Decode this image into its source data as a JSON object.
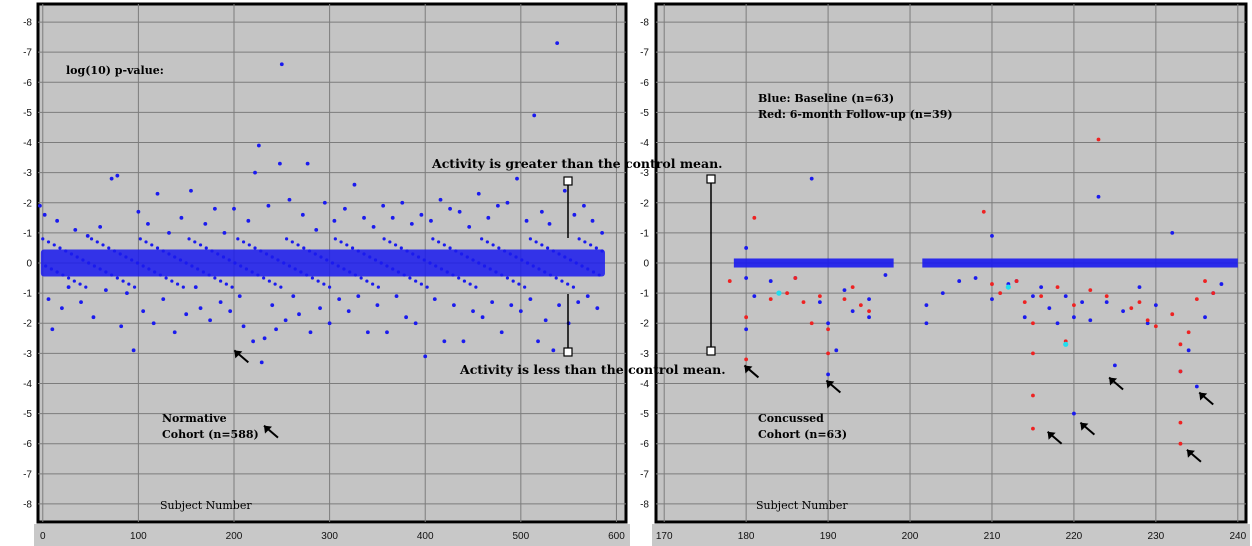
{
  "chart_data": [
    {
      "type": "scatter",
      "xlim": [
        -5,
        610
      ],
      "ylim": [
        -8.6,
        8.6
      ],
      "y_axis_inverted": true,
      "xticks": [
        0,
        100,
        200,
        300,
        400,
        500,
        600
      ],
      "yticks": [
        -8,
        -7,
        -6,
        -5,
        -4,
        -3,
        -2,
        -1,
        0,
        1,
        2,
        3,
        4,
        5,
        6,
        7,
        8
      ],
      "ytick_labels": [
        "-8",
        "-7",
        "-6",
        "-5",
        "-4",
        "-3",
        "-2",
        "-1",
        "0",
        "-1",
        "-2",
        "-3",
        "-4",
        "-5",
        "-6",
        "-7",
        "-8"
      ],
      "grid": true,
      "title": "log(10) p-value:",
      "xlabel": "Subject Number",
      "cohort_label": [
        "Normative",
        "Cohort (n=588)"
      ],
      "series": [
        {
          "color": "#1a1aee",
          "points": [
            [
              -3,
              -1.9
            ],
            [
              2,
              -1.6
            ],
            [
              6,
              1.2
            ],
            [
              10,
              2.2
            ],
            [
              15,
              -1.4
            ],
            [
              20,
              1.5
            ],
            [
              27,
              0.8
            ],
            [
              34,
              -1.1
            ],
            [
              40,
              1.3
            ],
            [
              47,
              -0.9
            ],
            [
              53,
              1.8
            ],
            [
              60,
              -1.2
            ],
            [
              66,
              0.9
            ],
            [
              72,
              -2.8
            ],
            [
              78,
              -2.9
            ],
            [
              82,
              2.1
            ],
            [
              88,
              1.0
            ],
            [
              95,
              2.9
            ],
            [
              100,
              -1.7
            ],
            [
              105,
              1.6
            ],
            [
              110,
              -1.3
            ],
            [
              116,
              2.0
            ],
            [
              120,
              -2.3
            ],
            [
              126,
              1.2
            ],
            [
              132,
              -1.0
            ],
            [
              138,
              2.3
            ],
            [
              145,
              -1.5
            ],
            [
              150,
              1.7
            ],
            [
              155,
              -2.4
            ],
            [
              160,
              0.8
            ],
            [
              165,
              1.5
            ],
            [
              170,
              -1.3
            ],
            [
              175,
              1.9
            ],
            [
              180,
              -1.8
            ],
            [
              186,
              1.3
            ],
            [
              190,
              -1.0
            ],
            [
              196,
              1.6
            ],
            [
              200,
              -1.8
            ],
            [
              206,
              1.1
            ],
            [
              210,
              2.1
            ],
            [
              215,
              -1.4
            ],
            [
              220,
              2.6
            ],
            [
              222,
              -3.0
            ],
            [
              226,
              -3.9
            ],
            [
              229,
              3.3
            ],
            [
              232,
              2.5
            ],
            [
              236,
              -1.9
            ],
            [
              240,
              1.4
            ],
            [
              244,
              2.2
            ],
            [
              248,
              -3.3
            ],
            [
              250,
              -6.6
            ],
            [
              254,
              1.9
            ],
            [
              258,
              -2.1
            ],
            [
              262,
              1.1
            ],
            [
              268,
              1.7
            ],
            [
              272,
              -1.6
            ],
            [
              277,
              -3.3
            ],
            [
              280,
              2.3
            ],
            [
              286,
              -1.1
            ],
            [
              290,
              1.5
            ],
            [
              295,
              -2.0
            ],
            [
              300,
              2.0
            ],
            [
              305,
              -1.4
            ],
            [
              310,
              1.2
            ],
            [
              316,
              -1.8
            ],
            [
              320,
              1.6
            ],
            [
              326,
              -2.6
            ],
            [
              330,
              1.1
            ],
            [
              336,
              -1.5
            ],
            [
              340,
              2.3
            ],
            [
              346,
              -1.2
            ],
            [
              350,
              1.4
            ],
            [
              356,
              -1.9
            ],
            [
              360,
              2.3
            ],
            [
              366,
              -1.5
            ],
            [
              370,
              1.1
            ],
            [
              376,
              -2.0
            ],
            [
              380,
              1.8
            ],
            [
              386,
              -1.3
            ],
            [
              390,
              2.0
            ],
            [
              396,
              -1.6
            ],
            [
              400,
              3.1
            ],
            [
              406,
              -1.4
            ],
            [
              410,
              1.2
            ],
            [
              416,
              -2.1
            ],
            [
              420,
              2.6
            ],
            [
              426,
              -1.8
            ],
            [
              430,
              1.4
            ],
            [
              436,
              -1.7
            ],
            [
              440,
              2.6
            ],
            [
              446,
              -1.2
            ],
            [
              450,
              1.6
            ],
            [
              456,
              -2.3
            ],
            [
              460,
              1.8
            ],
            [
              466,
              -1.5
            ],
            [
              470,
              1.3
            ],
            [
              476,
              -1.9
            ],
            [
              480,
              2.3
            ],
            [
              486,
              -2.0
            ],
            [
              490,
              1.4
            ],
            [
              496,
              -2.8
            ],
            [
              500,
              1.6
            ],
            [
              506,
              -1.4
            ],
            [
              510,
              1.2
            ],
            [
              514,
              -4.9
            ],
            [
              518,
              2.6
            ],
            [
              522,
              -1.7
            ],
            [
              526,
              1.9
            ],
            [
              530,
              -1.3
            ],
            [
              534,
              2.9
            ],
            [
              538,
              -7.3
            ],
            [
              540,
              1.4
            ],
            [
              546,
              -2.4
            ],
            [
              550,
              2.0
            ],
            [
              556,
              -1.6
            ],
            [
              560,
              1.3
            ],
            [
              566,
              -1.9
            ],
            [
              570,
              1.1
            ],
            [
              575,
              -1.4
            ],
            [
              580,
              1.5
            ],
            [
              585,
              -1.0
            ]
          ]
        }
      ],
      "arrows": [
        {
          "x": 215,
          "y": 3.3
        },
        {
          "x": 246,
          "y": 5.8
        }
      ],
      "annotations": {
        "greater": "Activity is greater than the control mean.",
        "less": "Activity is less than the control mean."
      }
    },
    {
      "type": "scatter",
      "xlim": [
        169,
        241
      ],
      "ylim": [
        -8.6,
        8.6
      ],
      "y_axis_inverted": true,
      "xticks": [
        170,
        180,
        190,
        200,
        210,
        220,
        230,
        240
      ],
      "yticks": [
        -8,
        -7,
        -6,
        -5,
        -4,
        -3,
        -2,
        -1,
        0,
        1,
        2,
        3,
        4,
        5,
        6,
        7,
        8
      ],
      "ytick_labels": [
        "-8",
        "-7",
        "-6",
        "-5",
        "-4",
        "-3",
        "-2",
        "-1",
        "0",
        "-1",
        "-2",
        "-3",
        "-4",
        "-5",
        "-6",
        "-7",
        "-8"
      ],
      "grid": true,
      "xlabel": "Subject Number",
      "legend_lines": [
        "Blue: Baseline (n=63)",
        "Red: 6-month Follow-up (n=39)"
      ],
      "cohort_label": [
        "Concussed",
        "Cohort (n=63)"
      ],
      "series": [
        {
          "color": "#1a1aee",
          "points": [
            [
              180,
              -0.5
            ],
            [
              180,
              0.5
            ],
            [
              180,
              2.2
            ],
            [
              181,
              1.1
            ],
            [
              183,
              0.6
            ],
            [
              184,
              1.0
            ],
            [
              186,
              0.5
            ],
            [
              188,
              -2.8
            ],
            [
              189,
              1.3
            ],
            [
              190,
              2.0
            ],
            [
              190,
              3.7
            ],
            [
              191,
              2.9
            ],
            [
              192,
              0.9
            ],
            [
              193,
              1.6
            ],
            [
              195,
              1.2
            ],
            [
              195,
              1.8
            ],
            [
              197,
              0.4
            ],
            [
              202,
              1.4
            ],
            [
              202,
              2.0
            ],
            [
              204,
              1.0
            ],
            [
              206,
              0.6
            ],
            [
              208,
              0.5
            ],
            [
              210,
              1.2
            ],
            [
              210,
              -0.9
            ],
            [
              212,
              0.7
            ],
            [
              213,
              0.6
            ],
            [
              214,
              1.8
            ],
            [
              215,
              1.1
            ],
            [
              216,
              0.8
            ],
            [
              217,
              1.5
            ],
            [
              218,
              2.0
            ],
            [
              219,
              1.1
            ],
            [
              220,
              1.8
            ],
            [
              220,
              5.0
            ],
            [
              221,
              1.3
            ],
            [
              222,
              1.9
            ],
            [
              223,
              -2.2
            ],
            [
              224,
              1.3
            ],
            [
              225,
              3.4
            ],
            [
              226,
              1.6
            ],
            [
              228,
              0.8
            ],
            [
              229,
              2.0
            ],
            [
              230,
              1.4
            ],
            [
              232,
              -1.0
            ],
            [
              233,
              3.6
            ],
            [
              234,
              2.9
            ],
            [
              235,
              4.1
            ],
            [
              236,
              1.8
            ],
            [
              237,
              1.0
            ],
            [
              238,
              0.7
            ]
          ]
        },
        {
          "color": "#ee2222",
          "points": [
            [
              178,
              0.6
            ],
            [
              180,
              1.8
            ],
            [
              180,
              3.2
            ],
            [
              181,
              -1.5
            ],
            [
              183,
              1.2
            ],
            [
              185,
              1.0
            ],
            [
              186,
              0.5
            ],
            [
              187,
              1.3
            ],
            [
              188,
              2.0
            ],
            [
              189,
              1.1
            ],
            [
              190,
              2.2
            ],
            [
              190,
              3.0
            ],
            [
              192,
              1.2
            ],
            [
              193,
              0.8
            ],
            [
              194,
              1.4
            ],
            [
              195,
              1.6
            ],
            [
              209,
              -1.7
            ],
            [
              210,
              0.7
            ],
            [
              211,
              1.0
            ],
            [
              213,
              0.6
            ],
            [
              214,
              1.3
            ],
            [
              215,
              2.0
            ],
            [
              215,
              3.0
            ],
            [
              215,
              4.4
            ],
            [
              215,
              5.5
            ],
            [
              216,
              1.1
            ],
            [
              218,
              0.8
            ],
            [
              219,
              2.6
            ],
            [
              220,
              1.4
            ],
            [
              222,
              0.9
            ],
            [
              223,
              -4.1
            ],
            [
              224,
              1.1
            ],
            [
              227,
              1.5
            ],
            [
              228,
              1.3
            ],
            [
              229,
              1.9
            ],
            [
              230,
              2.1
            ],
            [
              232,
              1.7
            ],
            [
              233,
              2.7
            ],
            [
              233,
              3.6
            ],
            [
              233,
              5.3
            ],
            [
              233,
              6.0
            ],
            [
              234,
              2.3
            ],
            [
              235,
              1.2
            ],
            [
              236,
              0.6
            ],
            [
              237,
              1.0
            ]
          ]
        },
        {
          "color": "#22ddee",
          "points": [
            [
              184,
              1.0
            ],
            [
              212,
              0.8
            ],
            [
              219,
              2.7
            ]
          ]
        }
      ],
      "arrows": [
        {
          "x": 181.5,
          "y": 3.8
        },
        {
          "x": 191.5,
          "y": 4.3
        },
        {
          "x": 218.5,
          "y": 6.0
        },
        {
          "x": 222.5,
          "y": 5.7
        },
        {
          "x": 226,
          "y": 4.2
        },
        {
          "x": 235.5,
          "y": 6.6
        },
        {
          "x": 237,
          "y": 4.7
        }
      ]
    }
  ]
}
